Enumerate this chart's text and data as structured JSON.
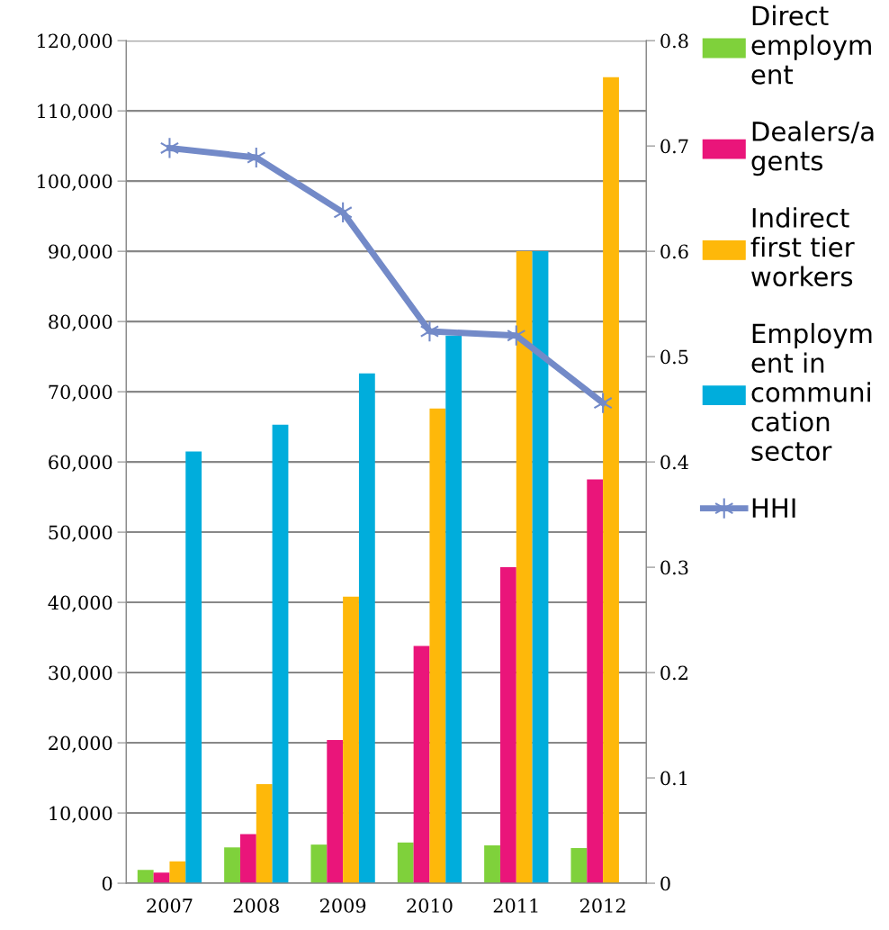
{
  "chart_data": {
    "type": "bar",
    "categories": [
      "2007",
      "2008",
      "2009",
      "2010",
      "2011",
      "2012"
    ],
    "series": [
      {
        "name": "Direct employment",
        "color": "#7fd13b",
        "values": [
          1900,
          5100,
          5500,
          5800,
          5400,
          5000
        ]
      },
      {
        "name": "Dealers/agents",
        "color": "#ea157a",
        "values": [
          1500,
          7000,
          20400,
          33800,
          45000,
          57500
        ]
      },
      {
        "name": "Indirect first tier workers",
        "color": "#feb80a",
        "values": [
          3100,
          14100,
          40800,
          67600,
          90000,
          114800
        ]
      },
      {
        "name": "Employment in communication sector",
        "color": "#00addc",
        "values": [
          61500,
          65300,
          72600,
          78000,
          90000,
          null
        ]
      },
      {
        "name": "HHI",
        "type": "line",
        "axis": "y2",
        "color": "#738ac8",
        "marker": "cross",
        "values": [
          0.698,
          0.689,
          0.637,
          0.524,
          0.52,
          0.456
        ]
      }
    ],
    "ylim": [
      0,
      120000
    ],
    "yticks": [
      {
        "value": 0,
        "label": "0"
      },
      {
        "value": 10000,
        "label": "10,000"
      },
      {
        "value": 20000,
        "label": "20,000"
      },
      {
        "value": 30000,
        "label": "30,000"
      },
      {
        "value": 40000,
        "label": "40,000"
      },
      {
        "value": 50000,
        "label": "50,000"
      },
      {
        "value": 60000,
        "label": "60,000"
      },
      {
        "value": 70000,
        "label": "70,000"
      },
      {
        "value": 80000,
        "label": "80,000"
      },
      {
        "value": 90000,
        "label": "90,000"
      },
      {
        "value": 100000,
        "label": "100,000"
      },
      {
        "value": 110000,
        "label": "110,000"
      },
      {
        "value": 120000,
        "label": "120,000"
      }
    ],
    "y2lim": [
      0,
      0.8
    ],
    "y2ticks": [
      0,
      0.1,
      0.2,
      0.3,
      0.4,
      0.5,
      0.6,
      0.7,
      0.8
    ],
    "grid": "y",
    "legend": "right"
  }
}
